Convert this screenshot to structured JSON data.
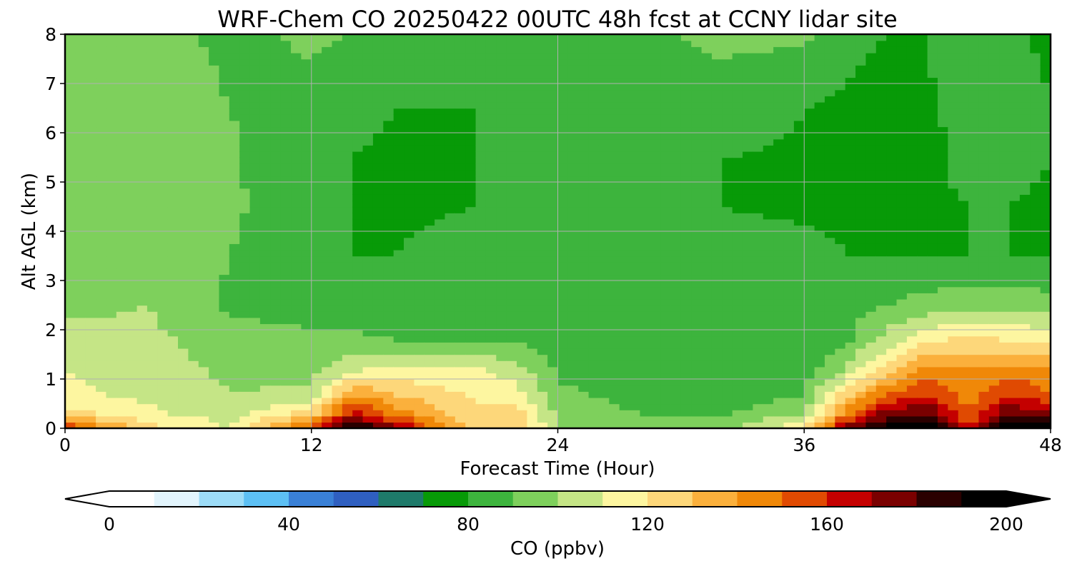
{
  "chart_data": {
    "type": "heatmap",
    "title": "WRF-Chem CO  20250422 00UTC 48h fcst at CCNY lidar site",
    "xlabel": "Forecast Time (Hour)",
    "ylabel": "Alt AGL (km)",
    "xlim": [
      0,
      48
    ],
    "ylim": [
      0,
      8
    ],
    "xticks": [
      "0",
      "12",
      "24",
      "36",
      "48"
    ],
    "yticks": [
      "0",
      "1",
      "2",
      "3",
      "4",
      "5",
      "6",
      "7",
      "8"
    ],
    "grid": true,
    "colorbar": {
      "label": "CO  (ppbv)",
      "ticks": [
        "0",
        "40",
        "80",
        "120",
        "160",
        "200"
      ],
      "range": [
        0,
        200
      ],
      "extend": "both",
      "colors": [
        "#ffffff",
        "#e2f4fc",
        "#9ddcf7",
        "#5dc0f4",
        "#3a80d6",
        "#2f5fc0",
        "#1e7a6a",
        "#079a07",
        "#3db43d",
        "#7ed05c",
        "#c5e586",
        "#fdf6a0",
        "#fdd77a",
        "#fbb03c",
        "#f08808",
        "#e04a02",
        "#c40000",
        "#7a0000",
        "#2a0000",
        "#000000"
      ]
    },
    "x_hours": [
      0,
      4,
      8,
      12,
      14,
      16,
      20,
      22,
      24,
      28,
      32,
      36,
      38,
      40,
      42,
      44,
      46,
      48
    ],
    "z_km": [
      0,
      0.3,
      0.7,
      1.2,
      1.8,
      2.5,
      3.5,
      4.5,
      5.5,
      6.5,
      7.5,
      8
    ],
    "co_ppbv": [
      [
        160,
        125,
        110,
        160,
        195,
        175,
        125,
        130,
        100,
        96,
        96,
        120,
        175,
        195,
        200,
        160,
        200,
        200
      ],
      [
        125,
        112,
        105,
        125,
        165,
        145,
        122,
        125,
        98,
        90,
        88,
        100,
        145,
        175,
        180,
        150,
        180,
        170
      ],
      [
        112,
        108,
        100,
        102,
        140,
        130,
        118,
        115,
        92,
        86,
        84,
        90,
        125,
        150,
        160,
        145,
        160,
        150
      ],
      [
        110,
        105,
        98,
        96,
        108,
        112,
        112,
        104,
        88,
        84,
        82,
        84,
        100,
        125,
        145,
        140,
        145,
        140
      ],
      [
        106,
        103,
        94,
        92,
        92,
        90,
        90,
        88,
        86,
        84,
        82,
        82,
        88,
        104,
        118,
        122,
        120,
        118
      ],
      [
        96,
        100,
        88,
        86,
        84,
        84,
        84,
        84,
        84,
        82,
        84,
        86,
        86,
        90,
        94,
        96,
        96,
        94
      ],
      [
        90,
        100,
        90,
        84,
        80,
        80,
        82,
        84,
        84,
        82,
        82,
        82,
        80,
        80,
        80,
        80,
        80,
        80
      ],
      [
        90,
        98,
        92,
        82,
        80,
        79,
        80,
        84,
        83,
        82,
        80,
        79,
        79,
        79,
        79,
        80,
        80,
        79
      ],
      [
        92,
        98,
        92,
        80,
        80,
        79,
        80,
        82,
        82,
        82,
        80,
        79,
        78,
        76,
        78,
        82,
        82,
        80
      ],
      [
        94,
        97,
        90,
        84,
        82,
        80,
        80,
        82,
        82,
        84,
        84,
        80,
        78,
        75,
        78,
        84,
        88,
        80
      ],
      [
        96,
        98,
        88,
        90,
        86,
        84,
        82,
        84,
        82,
        86,
        90,
        88,
        82,
        78,
        80,
        86,
        84,
        78
      ],
      [
        96,
        96,
        86,
        92,
        90,
        88,
        90,
        88,
        82,
        88,
        92,
        92,
        86,
        80,
        80,
        84,
        82,
        78
      ]
    ]
  }
}
